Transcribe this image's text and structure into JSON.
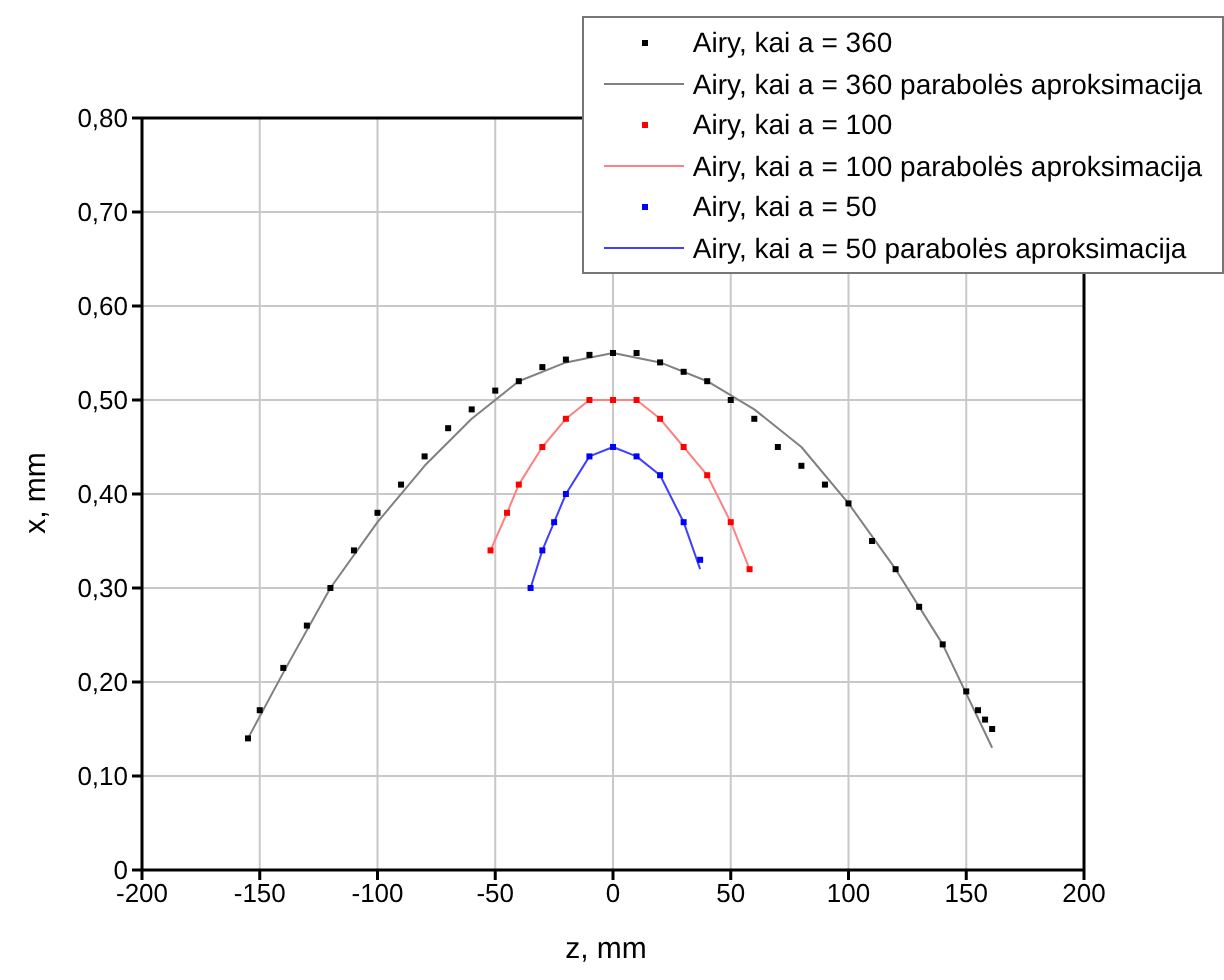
{
  "chart_data": {
    "type": "scatter",
    "xlabel": "z, mm",
    "ylabel": "x, mm",
    "xlim": [
      -200,
      200
    ],
    "xticks": [
      -200,
      -150,
      -100,
      -50,
      0,
      50,
      100,
      150,
      200
    ],
    "ylim": [
      0,
      0.8
    ],
    "yticks": [
      0,
      {
        "value": 0.1,
        "label": "0,10"
      },
      {
        "value": 0.2,
        "label": "0,20"
      },
      {
        "value": 0.3,
        "label": "0,30"
      },
      {
        "value": 0.4,
        "label": "0,40"
      },
      {
        "value": 0.5,
        "label": "0,50"
      },
      {
        "value": 0.6,
        "label": "0,60"
      },
      {
        "value": 0.7,
        "label": "0,70"
      },
      {
        "value": 0.8,
        "label": "0,80"
      }
    ],
    "grid": true,
    "legend": "top right",
    "marker": "square",
    "series": [
      {
        "name": "Airy, kai a = 360",
        "color": "#000000",
        "x": [
          -155,
          -150,
          -140,
          -130,
          -120,
          -110,
          -100,
          -90,
          -80,
          -70,
          -60,
          -50,
          -40,
          -30,
          -20,
          -10,
          0,
          10,
          20,
          30,
          40,
          50,
          60,
          70,
          80,
          90,
          100,
          110,
          120,
          130,
          140,
          150,
          155,
          158,
          161
        ],
        "values": [
          0.14,
          0.17,
          0.215,
          0.26,
          0.3,
          0.34,
          0.38,
          0.41,
          0.44,
          0.47,
          0.49,
          0.51,
          0.52,
          0.535,
          0.543,
          0.548,
          0.55,
          0.55,
          0.54,
          0.53,
          0.52,
          0.5,
          0.48,
          0.45,
          0.43,
          0.41,
          0.39,
          0.35,
          0.32,
          0.28,
          0.24,
          0.19,
          0.17,
          0.16,
          0.15
        ]
      },
      {
        "name": "Airy, kai a = 360 parabolės aproksimacija",
        "type": "line",
        "marker": "none",
        "color": "#808080",
        "x": [
          -155,
          -140,
          -120,
          -100,
          -80,
          -60,
          -40,
          -20,
          0,
          20,
          40,
          60,
          80,
          100,
          120,
          140,
          161
        ],
        "values": [
          0.14,
          0.21,
          0.3,
          0.37,
          0.43,
          0.48,
          0.52,
          0.54,
          0.55,
          0.54,
          0.52,
          0.49,
          0.45,
          0.39,
          0.32,
          0.24,
          0.13
        ]
      },
      {
        "name": "Airy, kai a = 100",
        "color": "#ff0000",
        "x": [
          -52,
          -45,
          -40,
          -30,
          -20,
          -10,
          0,
          10,
          20,
          30,
          40,
          50,
          58
        ],
        "values": [
          0.34,
          0.38,
          0.41,
          0.45,
          0.48,
          0.5,
          0.5,
          0.5,
          0.48,
          0.45,
          0.42,
          0.37,
          0.32
        ]
      },
      {
        "name": "Airy, kai a = 100 parabolės aproksimacija",
        "type": "line",
        "marker": "none",
        "color": "#ff8080",
        "x": [
          -52,
          -45,
          -40,
          -30,
          -20,
          -10,
          0,
          10,
          20,
          30,
          40,
          50,
          58
        ],
        "values": [
          0.34,
          0.38,
          0.41,
          0.45,
          0.48,
          0.5,
          0.5,
          0.5,
          0.48,
          0.45,
          0.42,
          0.37,
          0.32
        ]
      },
      {
        "name": "Airy, kai a = 50",
        "color": "#0000ff",
        "x": [
          -35,
          -30,
          -25,
          -20,
          -10,
          0,
          10,
          20,
          30,
          37
        ],
        "values": [
          0.3,
          0.34,
          0.37,
          0.4,
          0.44,
          0.45,
          0.44,
          0.42,
          0.37,
          0.33
        ]
      },
      {
        "name": "Airy, kai a = 50 parabolės aproksimacija",
        "type": "line",
        "marker": "none",
        "color": "#4040ff",
        "x": [
          -35,
          -30,
          -25,
          -20,
          -10,
          0,
          10,
          20,
          30,
          37
        ],
        "values": [
          0.3,
          0.34,
          0.37,
          0.4,
          0.44,
          0.45,
          0.44,
          0.42,
          0.37,
          0.32
        ]
      }
    ]
  }
}
